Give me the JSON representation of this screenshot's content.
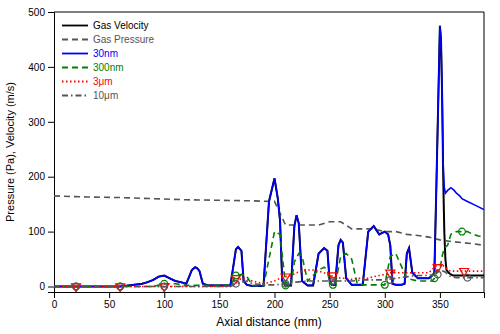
{
  "chart_data": {
    "type": "line",
    "xlabel": "Axial distance (mm)",
    "ylabel": "Pressure (Pa), Velocity (m/s)",
    "xlim": [
      0,
      390
    ],
    "ylim": [
      -10,
      500
    ],
    "xticks": [
      0,
      50,
      100,
      150,
      200,
      250,
      300,
      350
    ],
    "yticks": [
      0,
      100,
      200,
      300,
      400,
      500
    ],
    "grid": false,
    "legend": "upper left",
    "series": [
      {
        "name": "Gas Velocity",
        "type": "line",
        "color": "#000000",
        "line_style": "solid",
        "x": [
          0,
          20,
          40,
          60,
          80,
          85,
          90,
          95,
          100,
          105,
          110,
          115,
          120,
          125,
          128,
          130,
          132,
          135,
          140,
          145,
          150,
          155,
          160,
          165,
          167,
          170,
          172,
          175,
          180,
          185,
          190,
          195,
          200,
          203,
          205,
          207,
          210,
          215,
          218,
          220,
          222,
          225,
          230,
          235,
          240,
          245,
          248,
          250,
          252,
          255,
          258,
          260,
          262,
          265,
          270,
          275,
          280,
          285,
          290,
          295,
          300,
          303,
          305,
          307,
          310,
          315,
          318,
          320,
          322,
          325,
          330,
          335,
          340,
          343,
          345,
          347,
          350,
          351,
          352,
          353,
          354,
          355,
          356,
          358,
          360,
          362,
          365,
          370,
          375,
          380,
          385,
          390
        ],
        "values": [
          0,
          0,
          0,
          0,
          5,
          8,
          12,
          18,
          20,
          15,
          10,
          8,
          5,
          30,
          35,
          33,
          28,
          5,
          2,
          2,
          2,
          2,
          2,
          68,
          72,
          65,
          10,
          3,
          1,
          1,
          1,
          155,
          197,
          160,
          120,
          10,
          2,
          2,
          110,
          130,
          115,
          10,
          2,
          2,
          60,
          70,
          65,
          10,
          3,
          3,
          75,
          85,
          80,
          15,
          3,
          3,
          3,
          100,
          110,
          95,
          100,
          95,
          75,
          5,
          3,
          3,
          5,
          60,
          70,
          25,
          15,
          15,
          15,
          20,
          25,
          200,
          475,
          450,
          350,
          200,
          100,
          50,
          30,
          25,
          22,
          20,
          20,
          20,
          20,
          20,
          20,
          20
        ]
      },
      {
        "name": "Gas Pressure",
        "type": "line",
        "color": "#555555",
        "line_style": "dashed",
        "x": [
          0,
          30,
          60,
          90,
          120,
          150,
          180,
          195,
          200,
          210,
          215,
          220,
          240,
          250,
          260,
          270,
          280,
          290,
          300,
          310,
          320,
          330,
          340,
          350,
          360,
          370,
          380,
          390
        ],
        "values": [
          165,
          163,
          162,
          160,
          158,
          157,
          156,
          155,
          155,
          112,
          112,
          112,
          112,
          118,
          118,
          105,
          105,
          105,
          100,
          100,
          95,
          93,
          90,
          85,
          82,
          80,
          78,
          75
        ]
      },
      {
        "name": "30nm",
        "type": "line",
        "color": "#0000ff",
        "line_style": "solid",
        "x": [
          0,
          20,
          40,
          60,
          80,
          85,
          90,
          95,
          100,
          105,
          110,
          115,
          120,
          125,
          128,
          130,
          132,
          135,
          140,
          145,
          150,
          155,
          160,
          165,
          167,
          170,
          172,
          175,
          180,
          185,
          190,
          195,
          200,
          203,
          205,
          207,
          210,
          215,
          218,
          220,
          222,
          225,
          230,
          235,
          240,
          245,
          248,
          250,
          252,
          255,
          258,
          260,
          262,
          265,
          270,
          275,
          280,
          285,
          290,
          295,
          300,
          303,
          305,
          307,
          310,
          315,
          318,
          320,
          322,
          325,
          330,
          335,
          340,
          343,
          345,
          347,
          350,
          351,
          352,
          353,
          354,
          355,
          357,
          360,
          363,
          365,
          368,
          370,
          375,
          380,
          385,
          390
        ],
        "values": [
          0,
          0,
          0,
          0,
          5,
          8,
          12,
          18,
          20,
          15,
          10,
          8,
          5,
          30,
          35,
          33,
          28,
          5,
          2,
          2,
          2,
          2,
          2,
          68,
          72,
          65,
          10,
          3,
          1,
          1,
          1,
          155,
          197,
          160,
          120,
          10,
          2,
          2,
          110,
          130,
          115,
          10,
          2,
          2,
          60,
          70,
          65,
          10,
          3,
          3,
          75,
          85,
          80,
          15,
          3,
          3,
          3,
          100,
          110,
          95,
          100,
          95,
          75,
          5,
          3,
          3,
          5,
          60,
          70,
          25,
          15,
          15,
          15,
          20,
          25,
          200,
          475,
          450,
          350,
          220,
          180,
          170,
          175,
          180,
          175,
          170,
          165,
          160,
          155,
          150,
          145,
          140
        ]
      },
      {
        "name": "300nm",
        "type": "line",
        "color": "#008000",
        "line_style": "dashed",
        "x": [
          0,
          20,
          40,
          60,
          80,
          90,
          100,
          110,
          120,
          130,
          140,
          150,
          160,
          165,
          170,
          175,
          180,
          190,
          200,
          205,
          210,
          215,
          218,
          222,
          225,
          230,
          240,
          245,
          248,
          250,
          253,
          255,
          260,
          265,
          270,
          275,
          280,
          290,
          295,
          300,
          305,
          310,
          320,
          330,
          340,
          343,
          345,
          348,
          350,
          352,
          354,
          357,
          360,
          365,
          370,
          375,
          380,
          385,
          390
        ],
        "values": [
          0,
          0,
          0,
          0,
          0,
          0,
          5,
          5,
          2,
          2,
          2,
          2,
          2,
          20,
          22,
          18,
          2,
          1,
          100,
          95,
          2,
          2,
          45,
          60,
          55,
          10,
          30,
          35,
          30,
          5,
          3,
          3,
          55,
          60,
          50,
          5,
          3,
          3,
          3,
          3,
          55,
          60,
          15,
          10,
          10,
          10,
          15,
          30,
          30,
          55,
          70,
          75,
          95,
          100,
          100,
          100,
          95,
          92,
          90
        ]
      },
      {
        "type": "scatter",
        "color": "#008000",
        "marker": "circle",
        "x": [
          20,
          60,
          100,
          165,
          210,
          253,
          300,
          345,
          370
        ],
        "values": [
          0,
          0,
          5,
          20,
          2,
          3,
          3,
          15,
          100
        ]
      },
      {
        "name": "3μm",
        "type": "line",
        "color": "#ff0000",
        "line_style": "dotted",
        "x": [
          0,
          20,
          40,
          60,
          80,
          100,
          120,
          140,
          160,
          170,
          180,
          190,
          200,
          205,
          210,
          215,
          220,
          225,
          230,
          235,
          240,
          245,
          250,
          255,
          260,
          265,
          270,
          275,
          280,
          285,
          290,
          295,
          300,
          305,
          310,
          315,
          320,
          325,
          330,
          335,
          340,
          345,
          347,
          350,
          353,
          355,
          357,
          360,
          365,
          370,
          375,
          380,
          385,
          390
        ],
        "values": [
          0,
          0,
          0,
          0,
          0,
          0,
          0,
          0,
          0,
          15,
          10,
          5,
          10,
          15,
          18,
          20,
          25,
          28,
          30,
          30,
          28,
          25,
          20,
          18,
          15,
          15,
          13,
          15,
          15,
          15,
          18,
          20,
          22,
          25,
          25,
          25,
          25,
          25,
          25,
          25,
          25,
          35,
          38,
          40,
          38,
          35,
          30,
          28,
          28,
          28,
          28,
          28,
          28,
          28
        ]
      },
      {
        "type": "scatter",
        "color": "#ff0000",
        "marker": "triangle-down",
        "x": [
          20,
          60,
          100,
          165,
          210,
          253,
          305,
          348,
          372
        ],
        "values": [
          0,
          0,
          0,
          15,
          18,
          20,
          25,
          35,
          28
        ]
      },
      {
        "name": "10μm",
        "type": "line",
        "color": "#555555",
        "line_style": "dashdot",
        "x": [
          0,
          20,
          40,
          60,
          80,
          100,
          120,
          130,
          140,
          150,
          160,
          165,
          170,
          175,
          180,
          190,
          200,
          210,
          220,
          230,
          240,
          250,
          260,
          270,
          280,
          290,
          295,
          300,
          310,
          320,
          330,
          340,
          345,
          347,
          350,
          353,
          355,
          358,
          360,
          365,
          370,
          375,
          380,
          385,
          390
        ],
        "values": [
          0,
          0,
          0,
          0,
          0,
          0,
          0,
          0,
          0,
          0,
          0,
          5,
          8,
          10,
          5,
          3,
          3,
          5,
          8,
          10,
          10,
          10,
          10,
          10,
          12,
          12,
          12,
          12,
          15,
          18,
          20,
          20,
          22,
          25,
          28,
          28,
          26,
          20,
          18,
          16,
          16,
          16,
          16,
          16,
          16
        ]
      },
      {
        "type": "scatter",
        "color": "#555555",
        "marker": "circle",
        "x": [
          20,
          60,
          100,
          165,
          210,
          253,
          305,
          348,
          375
        ],
        "values": [
          0,
          0,
          0,
          5,
          5,
          10,
          12,
          22,
          16
        ]
      }
    ]
  }
}
